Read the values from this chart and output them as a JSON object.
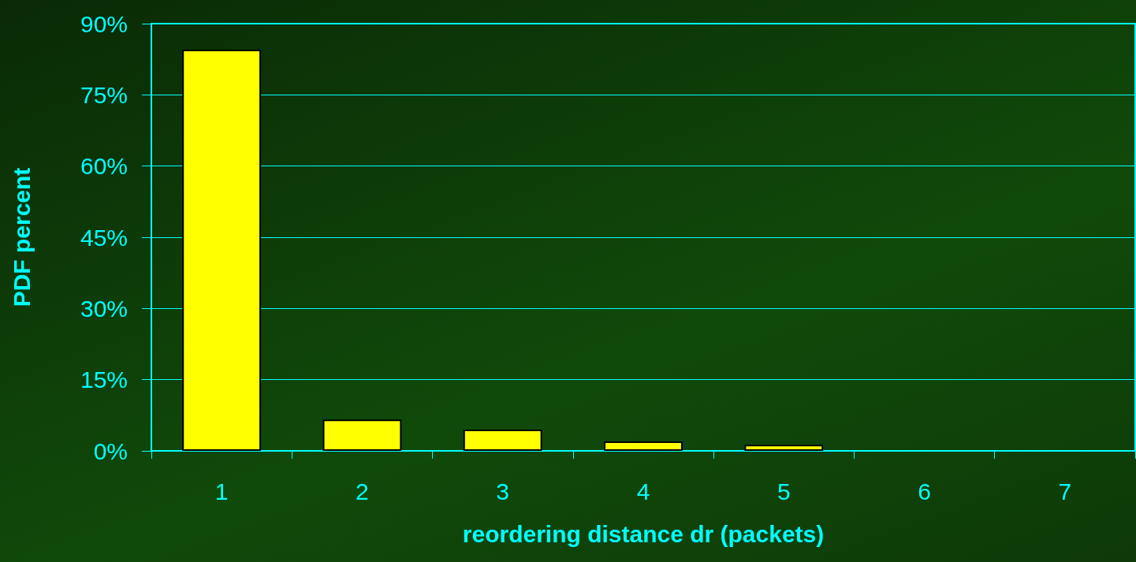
{
  "chart_data": {
    "type": "bar",
    "xlabel": "reordering distance dr (packets)",
    "ylabel": "PDF percent",
    "categories": [
      "1",
      "2",
      "3",
      "4",
      "5",
      "6",
      "7"
    ],
    "values": [
      84.5,
      6.6,
      4.5,
      2.0,
      1.3,
      0,
      0
    ],
    "color": "#ffff00",
    "ylim": [
      0,
      90
    ],
    "yticks": [
      {
        "value": 0,
        "label": "0%"
      },
      {
        "value": 15,
        "label": "15%"
      },
      {
        "value": 30,
        "label": "30%"
      },
      {
        "value": 45,
        "label": "45%"
      },
      {
        "value": 60,
        "label": "60%"
      },
      {
        "value": 75,
        "label": "75%"
      },
      {
        "value": 90,
        "label": "90%"
      }
    ],
    "grid": "y"
  }
}
